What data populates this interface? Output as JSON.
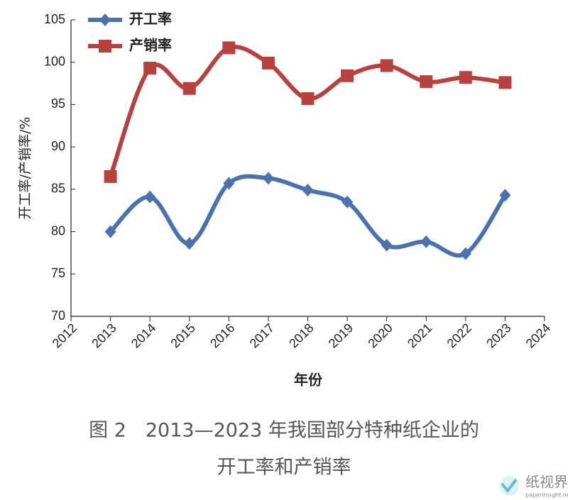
{
  "chart_data": {
    "type": "line",
    "x": [
      2013,
      2014,
      2015,
      2016,
      2017,
      2018,
      2019,
      2020,
      2021,
      2022,
      2023
    ],
    "series": [
      {
        "name": "开工率",
        "color": "#4a72ad",
        "marker": "diamond",
        "values": [
          80.0,
          84.1,
          78.6,
          85.7,
          86.3,
          84.9,
          83.5,
          78.4,
          78.8,
          77.4,
          84.3
        ]
      },
      {
        "name": "产销率",
        "color": "#b8403f",
        "marker": "square",
        "values": [
          86.5,
          99.3,
          96.9,
          101.7,
          99.9,
          95.7,
          98.4,
          99.6,
          97.7,
          98.2,
          97.6
        ]
      }
    ],
    "xlim": [
      2012,
      2024
    ],
    "xticks": [
      2012,
      2013,
      2014,
      2015,
      2016,
      2017,
      2018,
      2019,
      2020,
      2021,
      2022,
      2023,
      2024
    ],
    "ylim": [
      70,
      105
    ],
    "yticks": [
      70,
      75,
      80,
      85,
      90,
      95,
      100,
      105
    ],
    "x_label": "年份",
    "y_label": "开工率/产销率/%",
    "legend": "upper left",
    "caption": [
      "图 2　2013—2023 年我国部分特种纸企业的",
      "开工率和产销率"
    ],
    "watermark": {
      "name": "纸视界",
      "url": "paperinsight.net"
    }
  }
}
